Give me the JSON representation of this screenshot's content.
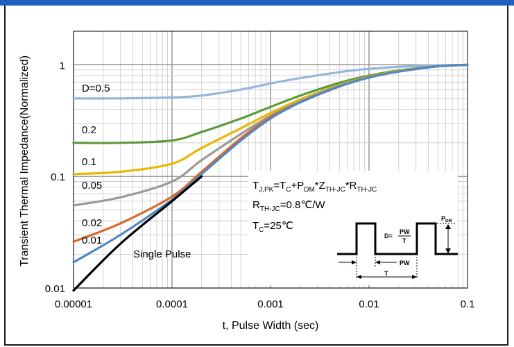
{
  "chart_data": {
    "type": "line",
    "title": "",
    "xlabel": "t, Pulse Width (sec)",
    "ylabel": "Transient Thermal Impedance(Normalized)",
    "xscale": "log",
    "yscale": "log",
    "xlim": [
      1e-05,
      0.1
    ],
    "ylim": [
      0.01,
      2
    ],
    "grid": true,
    "x_ticks": [
      {
        "value": 1e-05,
        "label": "0.00001"
      },
      {
        "value": 0.0001,
        "label": "0.0001"
      },
      {
        "value": 0.001,
        "label": "0.001"
      },
      {
        "value": 0.01,
        "label": "0.01"
      },
      {
        "value": 0.1,
        "label": "0.1"
      }
    ],
    "y_ticks": [
      {
        "value": 0.01,
        "label": "0.01"
      },
      {
        "value": 0.1,
        "label": "0.1"
      },
      {
        "value": 1,
        "label": "1"
      }
    ],
    "series": [
      {
        "name": "D=0.5",
        "color": "#95b6dc",
        "x": [
          1e-05,
          3e-05,
          0.0001,
          0.0002,
          0.0005,
          0.001,
          0.002,
          0.005,
          0.01,
          0.02,
          0.05,
          0.1
        ],
        "y": [
          0.5,
          0.5,
          0.51,
          0.53,
          0.6,
          0.68,
          0.76,
          0.86,
          0.92,
          0.96,
          0.99,
          1.0
        ]
      },
      {
        "name": "0.2",
        "color": "#5b9a3c",
        "x": [
          1e-05,
          3e-05,
          0.0001,
          0.0002,
          0.0005,
          0.001,
          0.002,
          0.005,
          0.01,
          0.02,
          0.05,
          0.1
        ],
        "y": [
          0.2,
          0.2,
          0.21,
          0.25,
          0.33,
          0.42,
          0.53,
          0.69,
          0.8,
          0.89,
          0.97,
          1.0
        ]
      },
      {
        "name": "0.1",
        "color": "#e8b800",
        "x": [
          1e-05,
          3e-05,
          0.0001,
          0.0002,
          0.0005,
          0.001,
          0.002,
          0.005,
          0.01,
          0.02,
          0.05,
          0.1
        ],
        "y": [
          0.105,
          0.11,
          0.13,
          0.18,
          0.27,
          0.37,
          0.49,
          0.66,
          0.78,
          0.88,
          0.97,
          1.0
        ]
      },
      {
        "name": "0.05",
        "color": "#9a9a9a",
        "x": [
          1e-05,
          3e-05,
          0.0001,
          0.0002,
          0.0005,
          0.001,
          0.002,
          0.005,
          0.01,
          0.02,
          0.05,
          0.1
        ],
        "y": [
          0.055,
          0.065,
          0.09,
          0.14,
          0.24,
          0.35,
          0.47,
          0.65,
          0.77,
          0.87,
          0.97,
          1.0
        ]
      },
      {
        "name": "0.02",
        "color": "#d9672a",
        "x": [
          1e-05,
          3e-05,
          0.0001,
          0.0002,
          0.0005,
          0.001,
          0.002,
          0.005,
          0.01,
          0.02,
          0.05,
          0.1
        ],
        "y": [
          0.026,
          0.038,
          0.066,
          0.11,
          0.22,
          0.34,
          0.46,
          0.64,
          0.77,
          0.87,
          0.97,
          1.0
        ]
      },
      {
        "name": "0.01",
        "color": "#4f88c4",
        "x": [
          1e-05,
          3e-05,
          0.0001,
          0.0002,
          0.0005,
          0.001,
          0.002,
          0.005,
          0.01,
          0.02,
          0.05,
          0.1
        ],
        "y": [
          0.017,
          0.03,
          0.062,
          0.105,
          0.21,
          0.33,
          0.46,
          0.64,
          0.77,
          0.87,
          0.97,
          1.0
        ]
      },
      {
        "name": "Single Pulse",
        "color": "#000000",
        "x": [
          1e-05,
          3e-05,
          0.0001,
          0.0002
        ],
        "y": [
          0.0095,
          0.025,
          0.06,
          0.1
        ]
      }
    ],
    "annotations": [
      {
        "text": "T_J,PK=T_C+P_DM*Z_TH-JC*R_TH-JC"
      },
      {
        "text": "R_TH-JC=0.8℃/W"
      },
      {
        "text": "T_C=25℃"
      }
    ]
  },
  "inset": {
    "duty_label": "D=",
    "pw_num": "PW",
    "t_den": "T",
    "pdm_label": "P",
    "pdm_sub": "DM",
    "pw_label": "PW",
    "t_label": "T"
  },
  "annot_parts": {
    "tj": "T",
    "tj_sub": "J,PK",
    "eq1": "=T",
    "tc_sub": "C",
    "plus": "+P",
    "pdm_sub": "DM",
    "z": "*Z",
    "zth_sub": "TH-JC",
    "r": "*R",
    "rth_sub": "TH-JC",
    "r2": "R",
    "r2_sub": "TH-JC",
    "r2_val": "=0.8℃/W",
    "tc2": "T",
    "tc2_sub": "C",
    "tc2_val": "=25℃"
  }
}
